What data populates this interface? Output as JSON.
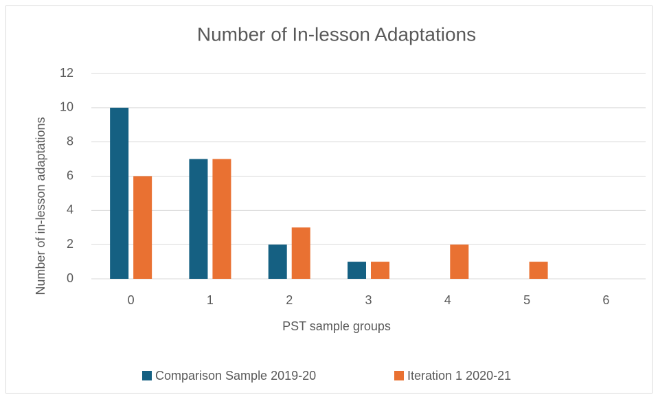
{
  "chart_data": {
    "type": "bar",
    "title": "Number of In-lesson Adaptations",
    "xlabel": "PST sample groups",
    "ylabel": "Number of in-lesson adaptations",
    "categories": [
      "0",
      "1",
      "2",
      "3",
      "4",
      "5",
      "6"
    ],
    "series": [
      {
        "name": "Comparison Sample 2019-20",
        "color": "#156082",
        "values": [
          10,
          7,
          2,
          1,
          0,
          0,
          0
        ]
      },
      {
        "name": "Iteration 1 2020-21",
        "color": "#e97132",
        "values": [
          6,
          7,
          3,
          1,
          2,
          1,
          0
        ]
      }
    ],
    "ylim": [
      0,
      12
    ],
    "yticks": [
      0,
      2,
      4,
      6,
      8,
      10,
      12
    ],
    "grid": true,
    "legend": "bottom"
  }
}
